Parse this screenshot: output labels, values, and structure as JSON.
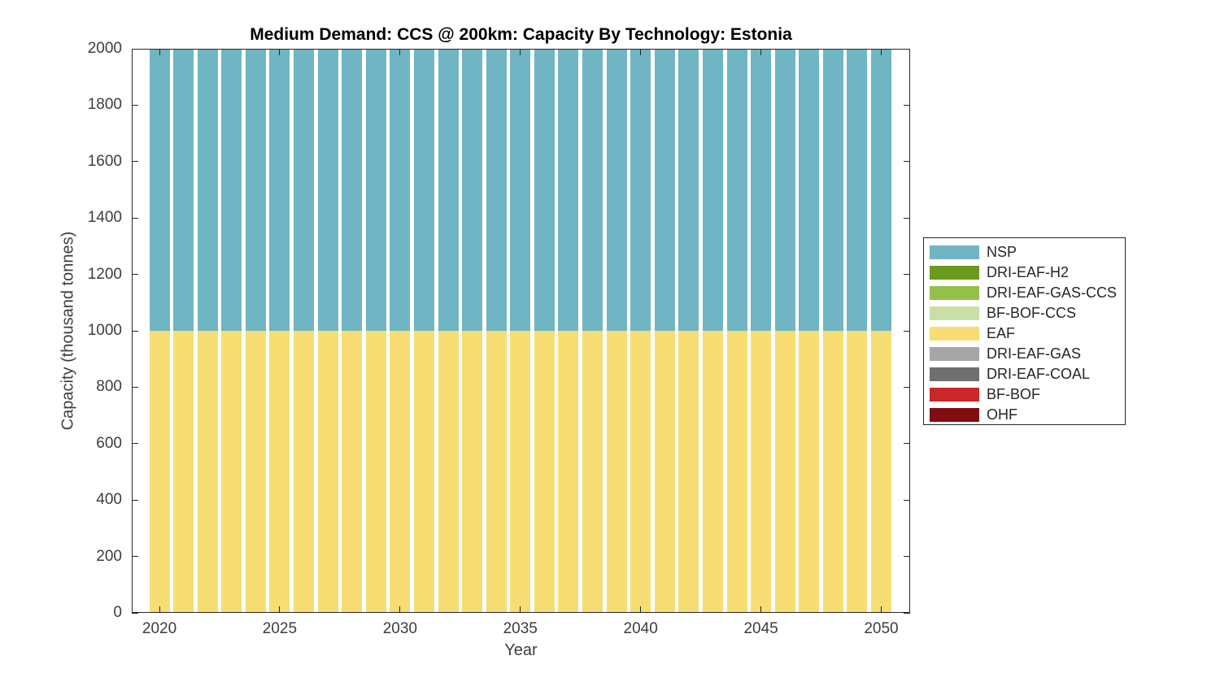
{
  "chart_data": {
    "type": "bar",
    "stacked": true,
    "title": "Medium Demand: CCS @ 200km: Capacity By Technology: Estonia",
    "xlabel": "Year",
    "ylabel": "Capacity (thousand tonnes)",
    "grid": false,
    "legend_position": "outside-right",
    "stacking_note": "series listed in legend order (top to bottom); bars stack bottom-to-top in reverse of this list",
    "xlim": [
      2018.85,
      2051.2
    ],
    "ylim": [
      0,
      2000
    ],
    "xticks": [
      2020,
      2025,
      2030,
      2035,
      2040,
      2045,
      2050
    ],
    "yticks": [
      0,
      200,
      400,
      600,
      800,
      1000,
      1200,
      1400,
      1600,
      1800,
      2000
    ],
    "bar_width_fraction_of_year": 0.85,
    "axis_color": "#262626",
    "x": [
      2020,
      2021,
      2022,
      2023,
      2024,
      2025,
      2026,
      2027,
      2028,
      2029,
      2030,
      2031,
      2032,
      2033,
      2034,
      2035,
      2036,
      2037,
      2038,
      2039,
      2040,
      2041,
      2042,
      2043,
      2044,
      2045,
      2046,
      2047,
      2048,
      2049,
      2050
    ],
    "series": [
      {
        "name": "NSP",
        "color": "#6FB5C4",
        "values": [
          1000,
          1000,
          1000,
          1000,
          1000,
          1000,
          1000,
          1000,
          1000,
          1000,
          1000,
          1000,
          1000,
          1000,
          1000,
          1000,
          1000,
          1000,
          1000,
          1000,
          1000,
          1000,
          1000,
          1000,
          1000,
          1000,
          1000,
          1000,
          1000,
          1000,
          1000
        ]
      },
      {
        "name": "DRI-EAF-H2",
        "color": "#6B9A1E",
        "values": [
          0,
          0,
          0,
          0,
          0,
          0,
          0,
          0,
          0,
          0,
          0,
          0,
          0,
          0,
          0,
          0,
          0,
          0,
          0,
          0,
          0,
          0,
          0,
          0,
          0,
          0,
          0,
          0,
          0,
          0,
          0
        ]
      },
      {
        "name": "DRI-EAF-GAS-CCS",
        "color": "#94C04A",
        "values": [
          0,
          0,
          0,
          0,
          0,
          0,
          0,
          0,
          0,
          0,
          0,
          0,
          0,
          0,
          0,
          0,
          0,
          0,
          0,
          0,
          0,
          0,
          0,
          0,
          0,
          0,
          0,
          0,
          0,
          0,
          0
        ]
      },
      {
        "name": "BF-BOF-CCS",
        "color": "#C9DFA7",
        "values": [
          0,
          0,
          0,
          0,
          0,
          0,
          0,
          0,
          0,
          0,
          0,
          0,
          0,
          0,
          0,
          0,
          0,
          0,
          0,
          0,
          0,
          0,
          0,
          0,
          0,
          0,
          0,
          0,
          0,
          0,
          0
        ]
      },
      {
        "name": "EAF",
        "color": "#F7DD73",
        "values": [
          1000,
          1000,
          1000,
          1000,
          1000,
          1000,
          1000,
          1000,
          1000,
          1000,
          1000,
          1000,
          1000,
          1000,
          1000,
          1000,
          1000,
          1000,
          1000,
          1000,
          1000,
          1000,
          1000,
          1000,
          1000,
          1000,
          1000,
          1000,
          1000,
          1000,
          1000
        ]
      },
      {
        "name": "DRI-EAF-GAS",
        "color": "#A6A6A6",
        "values": [
          0,
          0,
          0,
          0,
          0,
          0,
          0,
          0,
          0,
          0,
          0,
          0,
          0,
          0,
          0,
          0,
          0,
          0,
          0,
          0,
          0,
          0,
          0,
          0,
          0,
          0,
          0,
          0,
          0,
          0,
          0
        ]
      },
      {
        "name": "DRI-EAF-COAL",
        "color": "#6F6F6F",
        "values": [
          0,
          0,
          0,
          0,
          0,
          0,
          0,
          0,
          0,
          0,
          0,
          0,
          0,
          0,
          0,
          0,
          0,
          0,
          0,
          0,
          0,
          0,
          0,
          0,
          0,
          0,
          0,
          0,
          0,
          0,
          0
        ]
      },
      {
        "name": "BF-BOF",
        "color": "#CB2628",
        "values": [
          0,
          0,
          0,
          0,
          0,
          0,
          0,
          0,
          0,
          0,
          0,
          0,
          0,
          0,
          0,
          0,
          0,
          0,
          0,
          0,
          0,
          0,
          0,
          0,
          0,
          0,
          0,
          0,
          0,
          0,
          0
        ]
      },
      {
        "name": "OHF",
        "color": "#820D10",
        "values": [
          0,
          0,
          0,
          0,
          0,
          0,
          0,
          0,
          0,
          0,
          0,
          0,
          0,
          0,
          0,
          0,
          0,
          0,
          0,
          0,
          0,
          0,
          0,
          0,
          0,
          0,
          0,
          0,
          0,
          0,
          0
        ]
      }
    ]
  }
}
